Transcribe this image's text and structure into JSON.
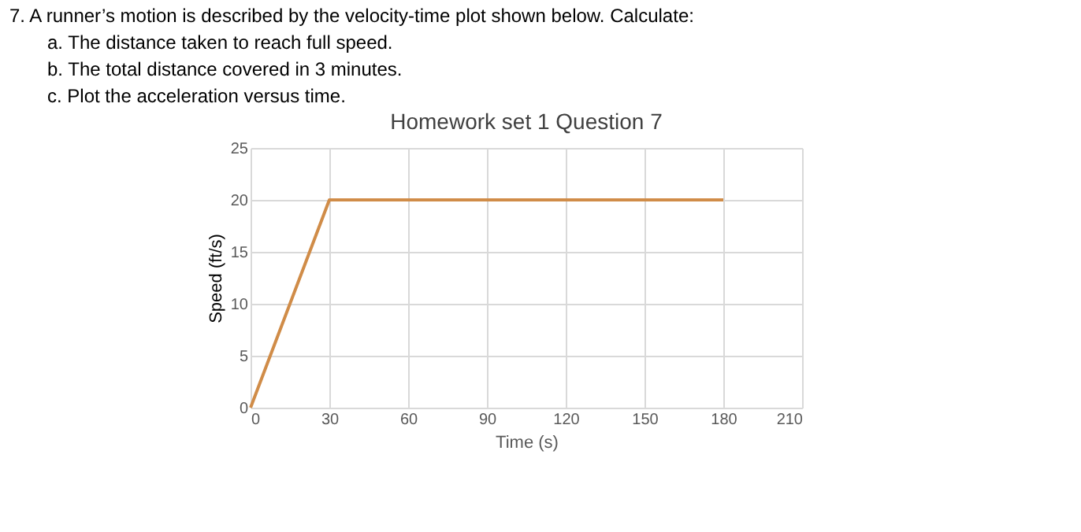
{
  "chart_data": {
    "type": "line",
    "title": "Homework set 1 Question 7",
    "xlabel": "Time (s)",
    "ylabel": "Speed (ft/s)",
    "annotations": [
      "7. A runner’s motion is described by the velocity-time plot shown below. Calculate:",
      "a.  The distance taken to reach full speed.",
      "b.  The total distance covered in 3 minutes.",
      "c.  Plot the acceleration versus time."
    ],
    "x": [
      0,
      30,
      180
    ],
    "series": [
      {
        "color": "#d08c48",
        "values": [
          0,
          20,
          20
        ]
      }
    ],
    "xlim": [
      0,
      210
    ],
    "xticks": [
      0,
      30,
      60,
      90,
      120,
      150,
      180,
      210
    ],
    "ylim": [
      0,
      25
    ],
    "yticks": [
      0,
      5,
      10,
      15,
      20,
      25
    ],
    "grid": true,
    "marker": "none",
    "line_style": "solid"
  }
}
